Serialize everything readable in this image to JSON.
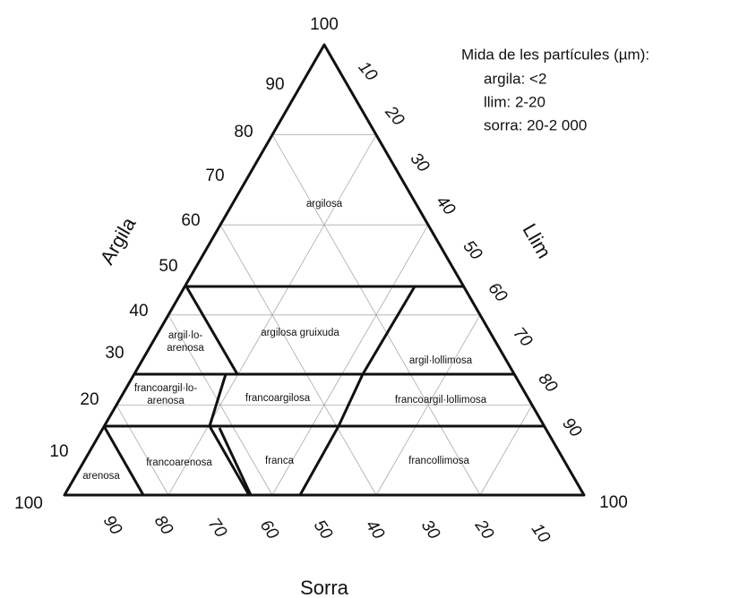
{
  "axes": {
    "argila": "Argila",
    "llim": "Llim",
    "sorra": "Sorra"
  },
  "ticks": {
    "argila": [
      100,
      90,
      80,
      70,
      60,
      50,
      40,
      30,
      20,
      10,
      100
    ],
    "llim": [
      10,
      20,
      30,
      40,
      50,
      60,
      70,
      80,
      90,
      100
    ],
    "sorra": [
      90,
      80,
      70,
      60,
      50,
      40,
      30,
      20,
      10
    ]
  },
  "regions": [
    {
      "lines": [
        "argilosa"
      ]
    },
    {
      "lines": [
        "argilosa gruixuda"
      ]
    },
    {
      "lines": [
        "argil·lo-",
        "arenosa"
      ]
    },
    {
      "lines": [
        "argil·lollimosa"
      ]
    },
    {
      "lines": [
        "francoargil·lo-",
        "arenosa"
      ]
    },
    {
      "lines": [
        "francoargilosa"
      ]
    },
    {
      "lines": [
        "francoargil·lollimosa"
      ]
    },
    {
      "lines": [
        "arenosa"
      ]
    },
    {
      "lines": [
        "francoarenosa"
      ]
    },
    {
      "lines": [
        "franca"
      ]
    },
    {
      "lines": [
        "francollimosa"
      ]
    }
  ],
  "legend": {
    "title": "Mida de les partícules (µm):",
    "items": [
      "argila: <2",
      "llim: 2-20",
      "sorra: 20-2 000"
    ]
  }
}
